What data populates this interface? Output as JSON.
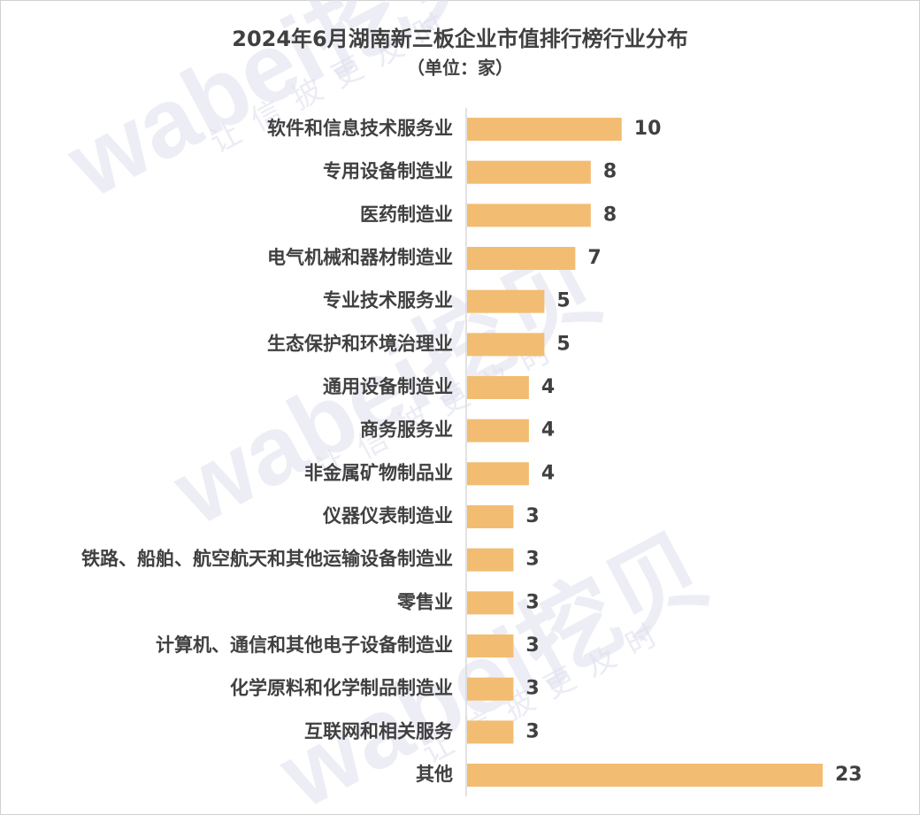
{
  "chart_data": {
    "type": "bar",
    "orientation": "horizontal",
    "title": "2024年6月湖南新三板企业市值排行榜行业分布",
    "subtitle": "（单位：家）",
    "watermark": [
      "wabei挖贝",
      "让信披更及时"
    ],
    "categories": [
      "软件和信息技术服务业",
      "专用设备制造业",
      "医药制造业",
      "电气机械和器材制造业",
      "专业技术服务业",
      "生态保护和环境治理业",
      "通用设备制造业",
      "商务服务业",
      "非金属矿物制品业",
      "仪器仪表制造业",
      "铁路、船舶、航空航天和其他运输设备制造业",
      "零售业",
      "计算机、通信和其他电子设备制造业",
      "化学原料和化学制品制造业",
      "互联网和相关服务",
      "其他"
    ],
    "values": [
      10,
      8,
      8,
      7,
      5,
      5,
      4,
      4,
      4,
      3,
      3,
      3,
      3,
      3,
      3,
      23
    ],
    "color": "#f2bd72"
  }
}
